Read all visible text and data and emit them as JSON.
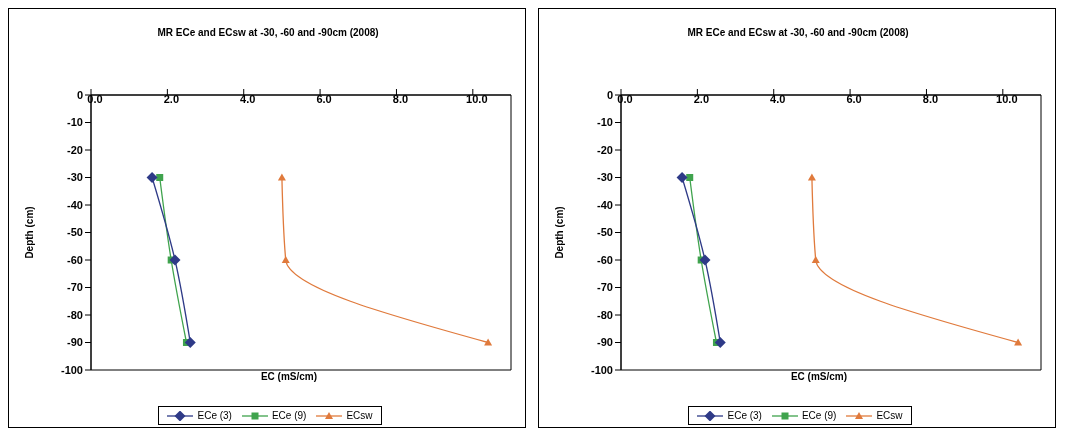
{
  "chart_data": [
    {
      "type": "line",
      "title": "MR ECe and ECsw at -30, -60 and -90cm (2008)",
      "xlabel": "EC (mS/cm)",
      "ylabel": "Depth (cm)",
      "xlim": [
        0,
        11
      ],
      "xticks": [
        {
          "value": 0,
          "label": "0.0"
        },
        {
          "value": 2,
          "label": "2.0"
        },
        {
          "value": 4,
          "label": "4.0"
        },
        {
          "value": 6,
          "label": "6.0"
        },
        {
          "value": 8,
          "label": "8.0"
        },
        {
          "value": 10,
          "label": "10.0"
        }
      ],
      "ylim": [
        -100,
        0
      ],
      "yticks": [
        0,
        -10,
        -20,
        -30,
        -40,
        -50,
        -60,
        -70,
        -80,
        -90,
        -100
      ],
      "grid": false,
      "legend": "bottom",
      "line_style": "solid",
      "series": [
        {
          "name": "ECe (3)",
          "color": "#2e3a87",
          "marker": "diamond",
          "x": [
            1.6,
            2.2,
            2.6
          ],
          "values": [
            -30,
            -60,
            -90
          ]
        },
        {
          "name": "ECe (9)",
          "color": "#3fa34d",
          "marker": "square",
          "x": [
            1.8,
            2.1,
            2.5
          ],
          "values": [
            -30,
            -60,
            -90
          ]
        },
        {
          "name": "ECsw",
          "color": "#e07a3c",
          "marker": "triangle",
          "x": [
            5.0,
            5.1,
            10.4
          ],
          "values": [
            -30,
            -60,
            -90
          ]
        }
      ]
    },
    {
      "type": "line",
      "title": "MR ECe and ECsw at -30, -60 and -90cm (2008)",
      "xlabel": "EC (mS/cm)",
      "ylabel": "Depth (cm)",
      "xlim": [
        0,
        11
      ],
      "xticks": [
        {
          "value": 0,
          "label": "0.0"
        },
        {
          "value": 2,
          "label": "2.0"
        },
        {
          "value": 4,
          "label": "4.0"
        },
        {
          "value": 6,
          "label": "6.0"
        },
        {
          "value": 8,
          "label": "8.0"
        },
        {
          "value": 10,
          "label": "10.0"
        }
      ],
      "ylim": [
        -100,
        0
      ],
      "yticks": [
        0,
        -10,
        -20,
        -30,
        -40,
        -50,
        -60,
        -70,
        -80,
        -90,
        -100
      ],
      "grid": false,
      "legend": "bottom",
      "line_style": "solid",
      "series": [
        {
          "name": "ECe (3)",
          "color": "#2e3a87",
          "marker": "diamond",
          "x": [
            1.6,
            2.2,
            2.6
          ],
          "values": [
            -30,
            -60,
            -90
          ]
        },
        {
          "name": "ECe (9)",
          "color": "#3fa34d",
          "marker": "square",
          "x": [
            1.8,
            2.1,
            2.5
          ],
          "values": [
            -30,
            -60,
            -90
          ]
        },
        {
          "name": "ECsw",
          "color": "#e07a3c",
          "marker": "triangle",
          "x": [
            5.0,
            5.1,
            10.4
          ],
          "values": [
            -30,
            -60,
            -90
          ]
        }
      ]
    }
  ]
}
